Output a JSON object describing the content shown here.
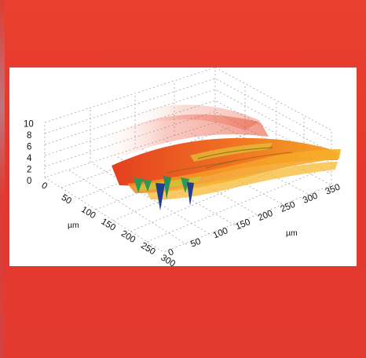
{
  "chart_data": {
    "type": "surface3d",
    "x_axis": {
      "label": "µm",
      "ticks": [
        "0",
        "50",
        "100",
        "150",
        "200",
        "250",
        "300"
      ],
      "range": [
        0,
        300
      ]
    },
    "y_axis": {
      "label": "µm",
      "ticks": [
        "0",
        "50",
        "100",
        "150",
        "200",
        "250",
        "300",
        "350"
      ],
      "range": [
        0,
        350
      ]
    },
    "z_axis": {
      "label": "",
      "ticks": [
        "0",
        "2",
        "4",
        "6",
        "8",
        "10"
      ],
      "range": [
        0,
        10
      ]
    },
    "grid": true,
    "colormap": [
      "#1e3f8f",
      "#2c9a55",
      "#d8c93a",
      "#f3a326",
      "#e2401f",
      "#ffffff"
    ]
  }
}
